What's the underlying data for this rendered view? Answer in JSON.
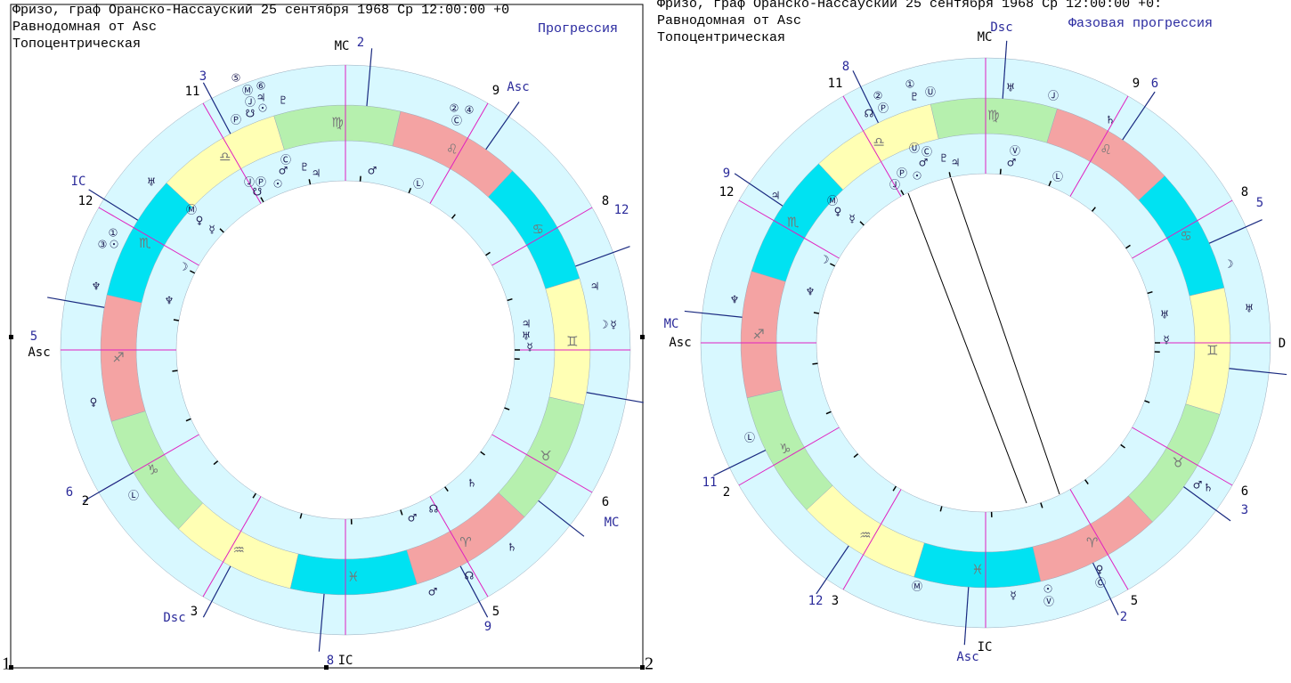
{
  "panels": [
    {
      "header": {
        "name_line": "Фризо, граф Оранско-Нассауский  25 сентября 1968  Ср  12:00:00 +0",
        "system": "Равнодомная от Asc",
        "topo": "Топоцентрическая",
        "mode": "Прогрессия"
      },
      "number": "1",
      "signs": [
        "♈",
        "♉",
        "♊",
        "♋",
        "♌",
        "♍",
        "♎",
        "♏",
        "♐",
        "♑",
        "♒",
        "♓"
      ],
      "labels": [
        "MC",
        "2",
        "Asc",
        "9",
        "3",
        "11",
        "IC",
        "12",
        "5",
        "Asc",
        "6",
        "2",
        "Dsc",
        "3",
        "8",
        "IC",
        "5",
        "9",
        "6",
        "MC",
        "8",
        "12"
      ],
      "planets": [
        "⑤",
        "Ⓜ",
        "⑥",
        "♃",
        "Ⓙ",
        "☉",
        "Ⓟ",
        "☋",
        "♇",
        "②",
        "④",
        "Ⓒ",
        "♅",
        "①",
        "③",
        "☉",
        "♆",
        "♀",
        "Ⓛ",
        "♃",
        "☽",
        "☿",
        "♄",
        "☊",
        "♂",
        "Ⓒ",
        "♂",
        "♇",
        "♃",
        "Ⓙ",
        "Ⓟ",
        "☉",
        "☋",
        "♂",
        "Ⓛ",
        "Ⓜ",
        "♀",
        "☿",
        "☽",
        "♆",
        "♃",
        "♅",
        "☿",
        "♄",
        "☊",
        "♂"
      ]
    },
    {
      "header": {
        "name_line": "Фризо, граф Оранско-Нассауский  25 сентября 1968  Ср  12:00:00 +0:",
        "system": "Равнодомная от Asc",
        "topo": "Топоцентрическая",
        "mode": "Фазовая прогрессия"
      },
      "number": "2",
      "signs": [
        "♈",
        "♉",
        "♊",
        "♋",
        "♌",
        "♍",
        "♎",
        "♏",
        "♐",
        "♑",
        "♒",
        "♓"
      ],
      "labels": [
        "Dsc",
        "MC",
        "8",
        "11",
        "9",
        "6",
        "9",
        "12",
        "8",
        "5",
        "MC",
        "Asc",
        "D",
        "11",
        "2",
        "6",
        "3",
        "12",
        "3",
        "5",
        "2",
        "Asc",
        "IC"
      ],
      "planets": [
        "①",
        "Ⓤ",
        "♇",
        "②",
        "Ⓟ",
        "☊",
        "♅",
        "Ⓙ",
        "♄",
        "♃",
        "♆",
        "☽",
        "♅",
        "Ⓛ",
        "♂",
        "♄",
        "♀",
        "Ⓒ",
        "Ⓜ",
        "☿",
        "☉",
        "Ⓥ",
        "Ⓤ",
        "Ⓒ",
        "♂",
        "♇",
        "♃",
        "Ⓟ",
        "☉",
        "Ⓙ",
        "Ⓥ",
        "♂",
        "Ⓛ",
        "Ⓜ",
        "♀",
        "☿",
        "☽",
        "♆",
        "♅",
        "☿"
      ]
    }
  ]
}
